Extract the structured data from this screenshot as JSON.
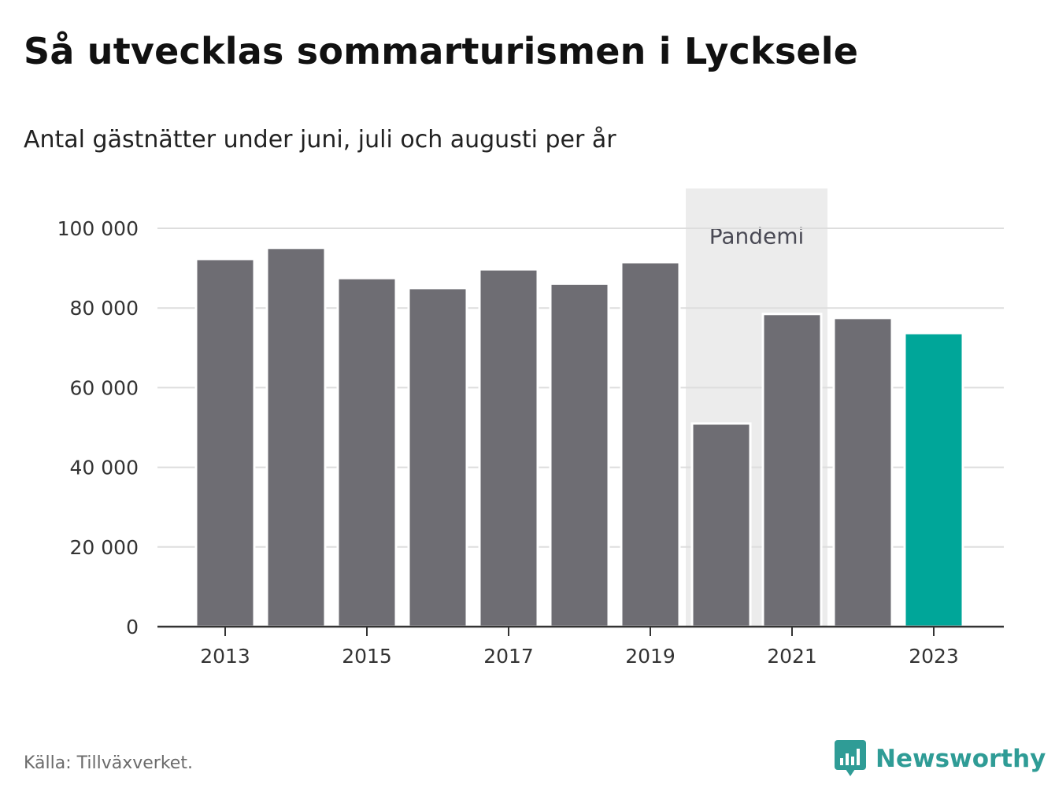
{
  "header": {
    "title": "Så utvecklas sommarturismen i Lycksele",
    "subtitle": "Antal gästnätter under juni, juli och augusti per år"
  },
  "chart_data": {
    "type": "bar",
    "categories": [
      "2013",
      "2014",
      "2015",
      "2016",
      "2017",
      "2018",
      "2019",
      "2020",
      "2021",
      "2022",
      "2023"
    ],
    "values": [
      92300,
      95100,
      87500,
      85000,
      89700,
      86100,
      91500,
      51000,
      78500,
      77500,
      73700
    ],
    "highlight_index": 10,
    "colors": {
      "bar": "#6e6d73",
      "highlight": "#00a699",
      "shade": "#ececec",
      "grid": "#dddddd",
      "axis": "#333333"
    },
    "ylim": [
      0,
      110000
    ],
    "yticks": [
      0,
      20000,
      40000,
      60000,
      80000,
      100000
    ],
    "ytick_labels": [
      "0",
      "20 000",
      "40 000",
      "60 000",
      "80 000",
      "100 000"
    ],
    "xtick_labels": [
      "2013",
      "2015",
      "2017",
      "2019",
      "2021",
      "2023"
    ],
    "annotation": {
      "label": "Pandemi",
      "from": "2020",
      "to": "2021"
    },
    "grid": true
  },
  "footer": {
    "source": "Källa: Tillväxverket.",
    "brand": "Newsworthy",
    "brand_icon": "newsworthy-logo-icon",
    "brand_color": "#2f9c96"
  }
}
